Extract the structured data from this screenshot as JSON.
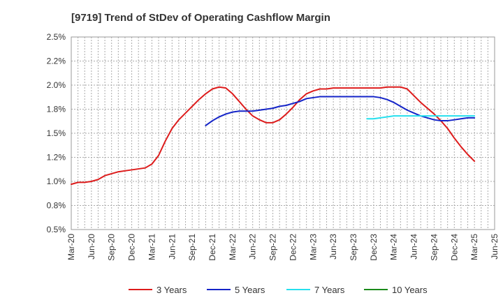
{
  "chart_data": {
    "type": "line",
    "title": "[9719]  Trend of StDev of Operating Cashflow Margin",
    "xlabel": "",
    "ylabel": "",
    "ylim": [
      0.005,
      0.025
    ],
    "yticks": [
      "2.5%",
      "2.2%",
      "2.0%",
      "1.8%",
      "1.5%",
      "1.2%",
      "1.0%",
      "0.8%",
      "0.5%"
    ],
    "ytick_values": [
      0.025,
      0.0225,
      0.02,
      0.0175,
      0.015,
      0.0125,
      0.01,
      0.0075,
      0.005
    ],
    "xticks": [
      "Mar-20",
      "Jun-20",
      "Sep-20",
      "Dec-20",
      "Mar-21",
      "Jun-21",
      "Sep-21",
      "Dec-21",
      "Mar-22",
      "Jun-22",
      "Sep-22",
      "Dec-22",
      "Mar-23",
      "Jun-23",
      "Sep-23",
      "Dec-23",
      "Mar-24",
      "Jun-24",
      "Sep-24",
      "Dec-24",
      "Mar-25",
      "Jun-25"
    ],
    "x_unit": "months from Mar-20",
    "grid": true,
    "legend_position": "bottom",
    "series": [
      {
        "name": "3 Years",
        "color": "#dd1c1c",
        "points": [
          [
            0,
            0.0097
          ],
          [
            1,
            0.0099
          ],
          [
            2,
            0.0099
          ],
          [
            3,
            0.01
          ],
          [
            4,
            0.0102
          ],
          [
            5,
            0.0106
          ],
          [
            6,
            0.0108
          ],
          [
            7,
            0.011
          ],
          [
            8,
            0.0111
          ],
          [
            9,
            0.0112
          ],
          [
            10,
            0.0113
          ],
          [
            11,
            0.0114
          ],
          [
            12,
            0.0118
          ],
          [
            13,
            0.0127
          ],
          [
            14,
            0.0142
          ],
          [
            15,
            0.0155
          ],
          [
            16,
            0.0164
          ],
          [
            17,
            0.0171
          ],
          [
            18,
            0.0178
          ],
          [
            19,
            0.0185
          ],
          [
            20,
            0.0191
          ],
          [
            21,
            0.0196
          ],
          [
            22,
            0.0198
          ],
          [
            23,
            0.0197
          ],
          [
            24,
            0.0191
          ],
          [
            25,
            0.0183
          ],
          [
            26,
            0.0175
          ],
          [
            27,
            0.0168
          ],
          [
            28,
            0.0164
          ],
          [
            29,
            0.0161
          ],
          [
            30,
            0.0161
          ],
          [
            31,
            0.0164
          ],
          [
            32,
            0.017
          ],
          [
            33,
            0.0177
          ],
          [
            34,
            0.0185
          ],
          [
            35,
            0.0191
          ],
          [
            36,
            0.0194
          ],
          [
            37,
            0.0196
          ],
          [
            38,
            0.0196
          ],
          [
            39,
            0.0197
          ],
          [
            40,
            0.0197
          ],
          [
            41,
            0.0197
          ],
          [
            42,
            0.0197
          ],
          [
            43,
            0.0197
          ],
          [
            44,
            0.0197
          ],
          [
            45,
            0.0197
          ],
          [
            46,
            0.0197
          ],
          [
            47,
            0.0198
          ],
          [
            48,
            0.0198
          ],
          [
            49,
            0.0198
          ],
          [
            50,
            0.0196
          ],
          [
            51,
            0.0189
          ],
          [
            52,
            0.0182
          ],
          [
            53,
            0.0176
          ],
          [
            54,
            0.017
          ],
          [
            55,
            0.0163
          ],
          [
            56,
            0.0155
          ],
          [
            57,
            0.0145
          ],
          [
            58,
            0.0136
          ],
          [
            59,
            0.0128
          ],
          [
            60,
            0.0121
          ]
        ]
      },
      {
        "name": "5 Years",
        "color": "#1424c8",
        "points": [
          [
            20,
            0.0158
          ],
          [
            21,
            0.0163
          ],
          [
            22,
            0.0167
          ],
          [
            23,
            0.017
          ],
          [
            24,
            0.0172
          ],
          [
            25,
            0.0173
          ],
          [
            26,
            0.0173
          ],
          [
            27,
            0.0173
          ],
          [
            28,
            0.0174
          ],
          [
            29,
            0.0175
          ],
          [
            30,
            0.0176
          ],
          [
            31,
            0.0178
          ],
          [
            32,
            0.0179
          ],
          [
            33,
            0.0181
          ],
          [
            34,
            0.0183
          ],
          [
            35,
            0.0186
          ],
          [
            36,
            0.0187
          ],
          [
            37,
            0.0188
          ],
          [
            38,
            0.0188
          ],
          [
            39,
            0.0188
          ],
          [
            40,
            0.0188
          ],
          [
            41,
            0.0188
          ],
          [
            42,
            0.0188
          ],
          [
            43,
            0.0188
          ],
          [
            44,
            0.0188
          ],
          [
            45,
            0.0188
          ],
          [
            46,
            0.0187
          ],
          [
            47,
            0.0185
          ],
          [
            48,
            0.0182
          ],
          [
            49,
            0.0178
          ],
          [
            50,
            0.0174
          ],
          [
            51,
            0.0171
          ],
          [
            52,
            0.0168
          ],
          [
            53,
            0.0166
          ],
          [
            54,
            0.0164
          ],
          [
            55,
            0.0163
          ],
          [
            56,
            0.0163
          ],
          [
            57,
            0.0164
          ],
          [
            58,
            0.0165
          ],
          [
            59,
            0.0166
          ],
          [
            60,
            0.0166
          ]
        ]
      },
      {
        "name": "7 Years",
        "color": "#26e0ee",
        "points": [
          [
            44,
            0.0165
          ],
          [
            45,
            0.0165
          ],
          [
            46,
            0.0166
          ],
          [
            47,
            0.0167
          ],
          [
            48,
            0.0168
          ],
          [
            49,
            0.0168
          ],
          [
            50,
            0.0168
          ],
          [
            51,
            0.0168
          ],
          [
            52,
            0.0168
          ],
          [
            53,
            0.0168
          ],
          [
            54,
            0.0168
          ],
          [
            55,
            0.0168
          ],
          [
            56,
            0.0168
          ],
          [
            57,
            0.0168
          ],
          [
            58,
            0.0168
          ],
          [
            59,
            0.0168
          ],
          [
            60,
            0.0168
          ]
        ]
      },
      {
        "name": "10 Years",
        "color": "#1a8a1a",
        "points": []
      }
    ]
  }
}
